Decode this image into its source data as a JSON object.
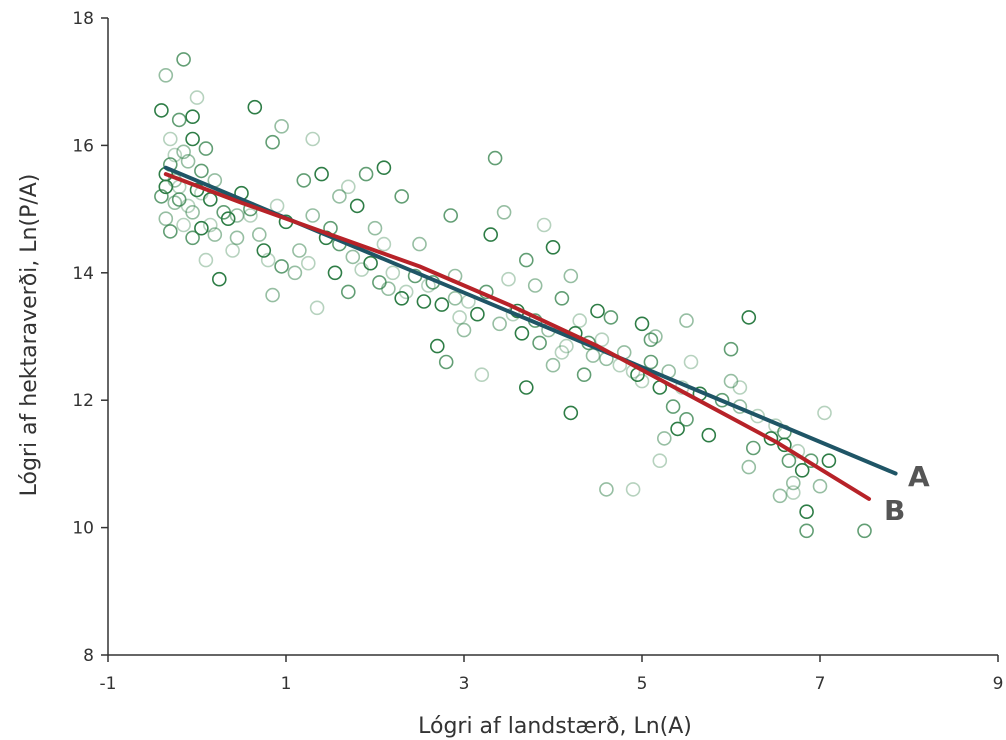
{
  "chart_data": {
    "type": "scatter",
    "xlabel": "Lógri af landstærð, Ln(A)",
    "ylabel": "Lógri af hektaraverði, Ln(P/A)",
    "xlim": [
      -1,
      9
    ],
    "ylim": [
      8,
      18
    ],
    "xticks": [
      "-1",
      "1",
      "3",
      "5",
      "7",
      "9"
    ],
    "yticks": [
      "8",
      "10",
      "12",
      "14",
      "16",
      "18"
    ],
    "grid": false,
    "colors": {
      "marker": "#2e7d46",
      "line_A": "#1f5566",
      "line_B": "#b72228",
      "axis": "#333333"
    },
    "series": [
      {
        "type": "scatter",
        "points": [
          [
            -0.4,
            16.55
          ],
          [
            -0.15,
            17.35
          ],
          [
            -0.35,
            17.1
          ],
          [
            0.0,
            16.75
          ],
          [
            -0.05,
            16.45
          ],
          [
            -0.2,
            16.4
          ],
          [
            -0.15,
            15.9
          ],
          [
            -0.3,
            16.1
          ],
          [
            -0.05,
            16.1
          ],
          [
            0.1,
            15.95
          ],
          [
            -0.1,
            15.75
          ],
          [
            -0.25,
            15.85
          ],
          [
            -0.35,
            15.55
          ],
          [
            0.05,
            15.6
          ],
          [
            0.2,
            15.45
          ],
          [
            -0.2,
            15.35
          ],
          [
            0.0,
            15.3
          ],
          [
            -0.4,
            15.2
          ],
          [
            -0.25,
            15.1
          ],
          [
            -0.1,
            15.05
          ],
          [
            0.15,
            15.15
          ],
          [
            0.3,
            14.95
          ],
          [
            -0.35,
            14.85
          ],
          [
            -0.15,
            14.75
          ],
          [
            0.05,
            14.7
          ],
          [
            -0.05,
            14.55
          ],
          [
            0.2,
            14.6
          ],
          [
            0.1,
            14.2
          ],
          [
            0.25,
            13.9
          ],
          [
            -0.3,
            14.65
          ],
          [
            0.45,
            14.9
          ],
          [
            0.4,
            14.35
          ],
          [
            0.5,
            15.25
          ],
          [
            0.6,
            15.0
          ],
          [
            0.7,
            14.6
          ],
          [
            0.8,
            14.2
          ],
          [
            0.65,
            16.6
          ],
          [
            0.85,
            16.05
          ],
          [
            0.95,
            16.3
          ],
          [
            0.9,
            15.05
          ],
          [
            1.0,
            14.8
          ],
          [
            1.2,
            15.45
          ],
          [
            1.3,
            14.9
          ],
          [
            1.3,
            16.1
          ],
          [
            1.4,
            15.55
          ],
          [
            1.5,
            14.7
          ],
          [
            1.6,
            15.2
          ],
          [
            1.7,
            15.35
          ],
          [
            1.8,
            15.05
          ],
          [
            1.9,
            15.55
          ],
          [
            2.0,
            14.7
          ],
          [
            2.1,
            14.45
          ],
          [
            2.1,
            15.65
          ],
          [
            2.3,
            15.2
          ],
          [
            1.1,
            14.0
          ],
          [
            1.35,
            13.45
          ],
          [
            1.55,
            14.0
          ],
          [
            1.7,
            13.7
          ],
          [
            0.85,
            13.65
          ],
          [
            2.2,
            14.0
          ],
          [
            2.3,
            13.6
          ],
          [
            2.45,
            13.95
          ],
          [
            2.5,
            14.45
          ],
          [
            2.6,
            13.8
          ],
          [
            2.75,
            13.5
          ],
          [
            2.85,
            14.9
          ],
          [
            2.9,
            13.95
          ],
          [
            2.95,
            13.3
          ],
          [
            2.7,
            12.85
          ],
          [
            2.8,
            12.6
          ],
          [
            3.0,
            13.1
          ],
          [
            3.2,
            12.4
          ],
          [
            3.3,
            14.6
          ],
          [
            3.35,
            15.8
          ],
          [
            3.45,
            14.95
          ],
          [
            3.5,
            13.9
          ],
          [
            3.6,
            13.4
          ],
          [
            3.7,
            14.2
          ],
          [
            3.8,
            13.8
          ],
          [
            3.9,
            14.75
          ],
          [
            4.0,
            14.4
          ],
          [
            4.1,
            13.6
          ],
          [
            4.2,
            13.95
          ],
          [
            4.3,
            13.25
          ],
          [
            3.7,
            12.2
          ],
          [
            3.85,
            12.9
          ],
          [
            4.0,
            12.55
          ],
          [
            4.1,
            12.75
          ],
          [
            4.2,
            11.8
          ],
          [
            4.35,
            12.4
          ],
          [
            4.45,
            12.7
          ],
          [
            4.55,
            12.95
          ],
          [
            4.5,
            13.4
          ],
          [
            4.65,
            13.3
          ],
          [
            4.8,
            12.75
          ],
          [
            4.9,
            12.45
          ],
          [
            5.0,
            13.2
          ],
          [
            5.1,
            12.95
          ],
          [
            5.15,
            13.0
          ],
          [
            5.0,
            12.3
          ],
          [
            5.2,
            12.2
          ],
          [
            5.35,
            11.9
          ],
          [
            5.5,
            13.25
          ],
          [
            5.55,
            12.6
          ],
          [
            5.4,
            11.55
          ],
          [
            5.5,
            11.7
          ],
          [
            5.25,
            11.4
          ],
          [
            5.2,
            11.05
          ],
          [
            5.75,
            11.45
          ],
          [
            6.0,
            12.8
          ],
          [
            6.0,
            12.3
          ],
          [
            6.1,
            12.2
          ],
          [
            6.2,
            13.3
          ],
          [
            6.25,
            11.25
          ],
          [
            6.2,
            10.95
          ],
          [
            6.5,
            11.6
          ],
          [
            6.6,
            11.3
          ],
          [
            6.65,
            11.05
          ],
          [
            6.7,
            10.7
          ],
          [
            6.75,
            11.2
          ],
          [
            6.8,
            10.9
          ],
          [
            6.9,
            11.05
          ],
          [
            6.55,
            10.5
          ],
          [
            6.7,
            10.55
          ],
          [
            6.85,
            10.25
          ],
          [
            6.85,
            9.95
          ],
          [
            7.0,
            10.65
          ],
          [
            7.05,
            11.8
          ],
          [
            7.1,
            11.05
          ],
          [
            7.5,
            9.95
          ],
          [
            4.6,
            10.6
          ],
          [
            4.9,
            10.6
          ],
          [
            -0.35,
            15.35
          ],
          [
            -0.2,
            15.15
          ],
          [
            -0.05,
            14.95
          ],
          [
            0.15,
            14.75
          ],
          [
            0.35,
            14.85
          ],
          [
            -0.3,
            15.7
          ],
          [
            0.45,
            14.55
          ],
          [
            0.6,
            14.9
          ],
          [
            0.75,
            14.35
          ],
          [
            0.95,
            14.1
          ],
          [
            1.15,
            14.35
          ],
          [
            1.25,
            14.15
          ],
          [
            1.45,
            14.55
          ],
          [
            1.6,
            14.45
          ],
          [
            1.75,
            14.25
          ],
          [
            1.85,
            14.05
          ],
          [
            1.95,
            14.15
          ],
          [
            2.05,
            13.85
          ],
          [
            2.15,
            13.75
          ],
          [
            2.35,
            13.7
          ],
          [
            2.55,
            13.55
          ],
          [
            2.65,
            13.85
          ],
          [
            2.9,
            13.6
          ],
          [
            3.05,
            13.55
          ],
          [
            3.15,
            13.35
          ],
          [
            3.25,
            13.7
          ],
          [
            3.4,
            13.2
          ],
          [
            3.55,
            13.35
          ],
          [
            3.65,
            13.05
          ],
          [
            3.8,
            13.25
          ],
          [
            3.95,
            13.1
          ],
          [
            4.15,
            12.85
          ],
          [
            4.25,
            13.05
          ],
          [
            4.4,
            12.9
          ],
          [
            4.6,
            12.65
          ],
          [
            4.75,
            12.55
          ],
          [
            4.95,
            12.4
          ],
          [
            5.1,
            12.6
          ],
          [
            5.3,
            12.45
          ],
          [
            5.45,
            12.2
          ],
          [
            5.65,
            12.1
          ],
          [
            5.9,
            12.0
          ],
          [
            6.1,
            11.9
          ],
          [
            6.3,
            11.75
          ],
          [
            6.45,
            11.4
          ],
          [
            6.6,
            11.5
          ],
          [
            -0.25,
            15.45
          ],
          [
            0.05,
            15.25
          ]
        ]
      },
      {
        "name": "A",
        "type": "line",
        "x": [
          -0.35,
          7.85
        ],
        "y": [
          15.65,
          10.85
        ]
      },
      {
        "name": "B",
        "type": "line",
        "x": [
          -0.35,
          0.5,
          1.5,
          2.5,
          3.5,
          4.5,
          5.5,
          6.5,
          7.55
        ],
        "y": [
          15.55,
          15.1,
          14.6,
          14.1,
          13.5,
          12.85,
          12.1,
          11.35,
          10.45
        ]
      }
    ]
  }
}
